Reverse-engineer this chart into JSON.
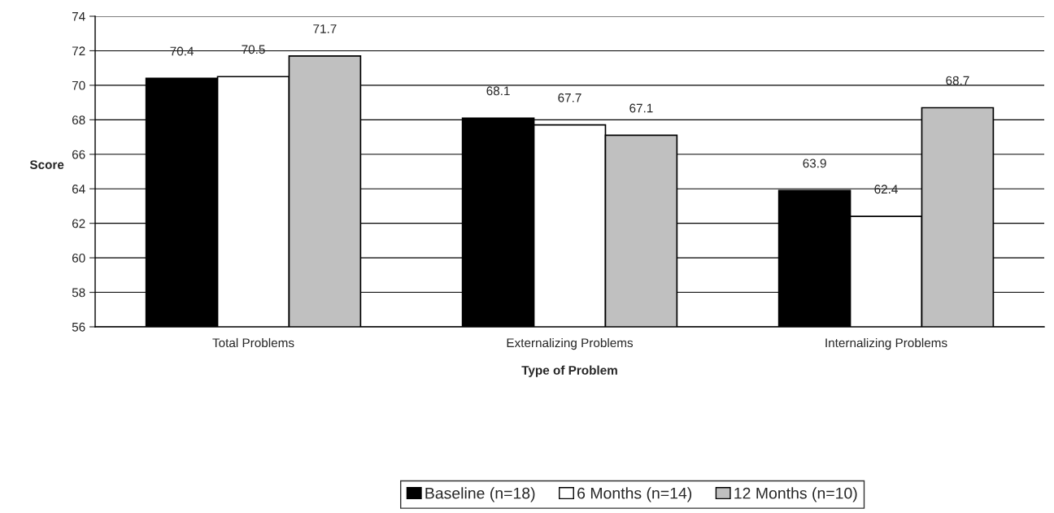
{
  "chart_data": {
    "type": "bar",
    "xlabel": "Type of Problem",
    "ylabel": "Score",
    "categories": [
      "Total Problems",
      "Externalizing Problems",
      "Internalizing Problems"
    ],
    "series": [
      {
        "name": "Baseline (n=18)",
        "color": "#000000",
        "values": [
          70.4,
          68.1,
          63.9
        ]
      },
      {
        "name": "6 Months (n=14)",
        "color": "#ffffff",
        "values": [
          70.5,
          67.7,
          62.4
        ]
      },
      {
        "name": "12 Months (n=10)",
        "color": "#c0c0c0",
        "values": [
          71.7,
          67.1,
          68.7
        ]
      }
    ],
    "ylim": [
      56,
      74
    ],
    "yticks": [
      56,
      58,
      60,
      62,
      64,
      66,
      68,
      70,
      72,
      74
    ],
    "grid": "y",
    "legend": "bottom",
    "data_labels": true
  }
}
